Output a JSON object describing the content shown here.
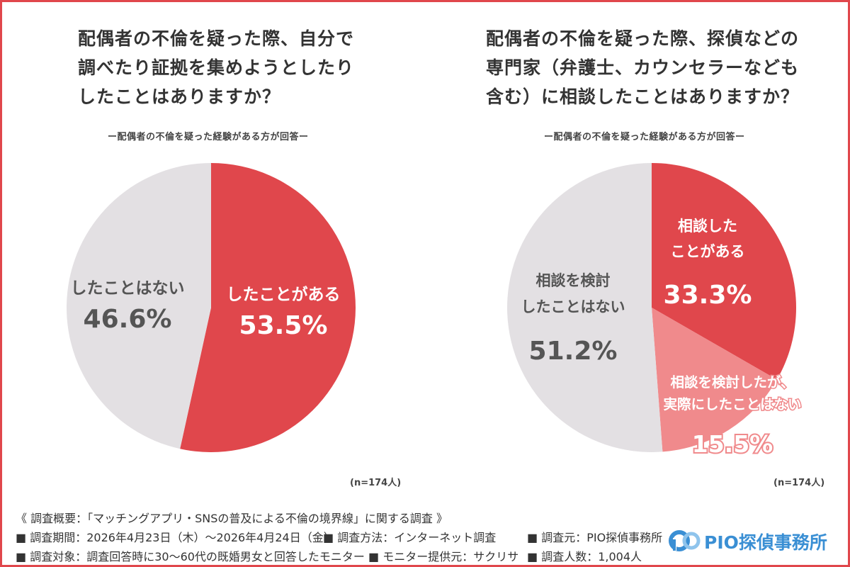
{
  "colors": {
    "accent_red": "#e0474c",
    "pink": "#f08a8c",
    "gray": "#e3e0e3",
    "border": "#e0474c",
    "logo_blue": "#3a8fd4"
  },
  "left": {
    "title": "配偶者の不倫を疑った際、自分で\n調べたり証拠を集めようとしたり\nしたことはありますか？",
    "subtitle": "ー配偶者の不倫を疑った経験がある方が回答ー",
    "n": "(n=174人)"
  },
  "right": {
    "title": "配偶者の不倫を疑った際、探偵などの\n専門家（弁護士、カウンセラーなども\n含む）に相談したことはありますか？",
    "subtitle": "ー配偶者の不倫を疑った経験がある方が回答ー",
    "n": "(n=174人)"
  },
  "chart_data": [
    {
      "type": "pie",
      "title": "配偶者の不倫を疑った際、自分で調べたり証拠を集めようとしたりしたことはありますか？",
      "slices": [
        {
          "label": "したことがある",
          "value": 53.5,
          "display": "53.5%",
          "color": "#e0474c"
        },
        {
          "label": "したことはない",
          "value": 46.6,
          "display": "46.6%",
          "color": "#e3e0e3"
        }
      ]
    },
    {
      "type": "pie",
      "title": "配偶者の不倫を疑った際、探偵などの専門家（弁護士、カウンセラーなども含む）に相談したことはありますか？",
      "slices": [
        {
          "label": "相談した\nことがある",
          "value": 33.3,
          "display": "33.3%",
          "color": "#e0474c"
        },
        {
          "label": "相談を検討したが、\n実際にしたことはない",
          "value": 15.5,
          "display": "15.5%",
          "color": "#f08a8c"
        },
        {
          "label": "相談を検討\nしたことはない",
          "value": 51.2,
          "display": "51.2%",
          "color": "#e3e0e3"
        }
      ]
    }
  ],
  "footer": {
    "heading": "《 調査概要：「マッチングアプリ・SNSの普及による不倫の境界線」に関する調査 》",
    "period": "■ 調査期間：2026年4月23日（木）～2026年4月24日（金）",
    "method": "■ 調査方法：インターネット調査",
    "source": "■ 調査元：PIO探偵事務所",
    "target": "■ 調査対象：調査回答時に30～60代の既婚男女と回答したモニター",
    "provider": "■ モニター提供元：サクリサ",
    "count": "■ 調査人数：1,004人"
  },
  "logo": {
    "text": "PIO探偵事務所",
    "icon": "pio-logo-icon"
  }
}
